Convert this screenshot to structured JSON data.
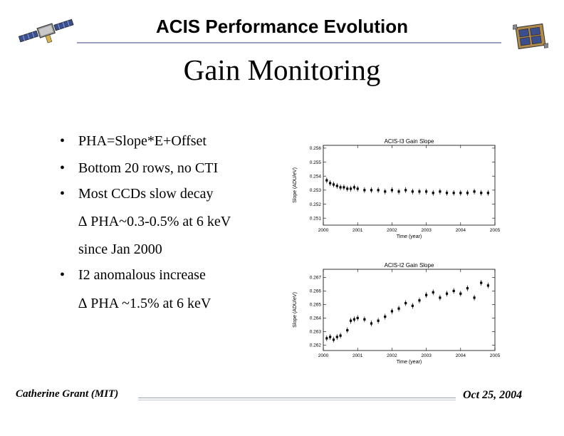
{
  "header": {
    "title": "ACIS Performance Evolution"
  },
  "slide": {
    "title": "Gain Monitoring"
  },
  "bullets": [
    {
      "marker": "•",
      "text": "PHA=Slope*E+Offset"
    },
    {
      "marker": "•",
      "text": "Bottom 20 rows, no CTI"
    },
    {
      "marker": "•",
      "text": "Most CCDs slow decay"
    },
    {
      "marker": "",
      "text": "∆ PHA~0.3-0.5% at 6 keV"
    },
    {
      "marker": "",
      "text": "since Jan 2000"
    },
    {
      "marker": "•",
      "text": "I2 anomalous increase"
    },
    {
      "marker": "",
      "text": "∆ PHA ~1.5% at 6 keV"
    }
  ],
  "footer": {
    "author": "Catherine Grant (MIT)",
    "date": "Oct 25, 2004"
  },
  "chart_data": [
    {
      "type": "scatter",
      "title": "ACIS-I3 Gain Slope",
      "xlabel": "Time (year)",
      "ylabel": "Slope (ADU/eV)",
      "xlim": [
        2000,
        2005
      ],
      "ylim": [
        0.2505,
        0.2562
      ],
      "xticks": [
        2000,
        2001,
        2002,
        2003,
        2004,
        2005
      ],
      "xtick_labels": [
        "2000",
        "2001",
        "2002",
        "2003",
        "2004",
        "2005"
      ],
      "yticks": [
        0.251,
        0.252,
        0.253,
        0.254,
        0.255,
        0.256
      ],
      "ytick_labels": [
        "0.251",
        "0.252",
        "0.253",
        "0.254",
        "0.255",
        "0.256"
      ],
      "points": [
        [
          2000.1,
          0.2537
        ],
        [
          2000.2,
          0.2535
        ],
        [
          2000.3,
          0.2534
        ],
        [
          2000.4,
          0.2533
        ],
        [
          2000.5,
          0.2532
        ],
        [
          2000.6,
          0.2532
        ],
        [
          2000.7,
          0.2531
        ],
        [
          2000.8,
          0.2531
        ],
        [
          2000.9,
          0.2532
        ],
        [
          2001.0,
          0.2531
        ],
        [
          2001.2,
          0.253
        ],
        [
          2001.4,
          0.253
        ],
        [
          2001.6,
          0.253
        ],
        [
          2001.8,
          0.2529
        ],
        [
          2002.0,
          0.253
        ],
        [
          2002.2,
          0.2529
        ],
        [
          2002.4,
          0.253
        ],
        [
          2002.6,
          0.2529
        ],
        [
          2002.8,
          0.2529
        ],
        [
          2003.0,
          0.2529
        ],
        [
          2003.2,
          0.2528
        ],
        [
          2003.4,
          0.2529
        ],
        [
          2003.6,
          0.2528
        ],
        [
          2003.8,
          0.2528
        ],
        [
          2004.0,
          0.2528
        ],
        [
          2004.2,
          0.2528
        ],
        [
          2004.4,
          0.2529
        ],
        [
          2004.6,
          0.2528
        ],
        [
          2004.8,
          0.2528
        ]
      ]
    },
    {
      "type": "scatter",
      "title": "ACIS-I2 Gain Slope",
      "xlabel": "Time (year)",
      "ylabel": "Slope (ADU/eV)",
      "xlim": [
        2000,
        2005
      ],
      "ylim": [
        0.2616,
        0.2676
      ],
      "xticks": [
        2000,
        2001,
        2002,
        2003,
        2004,
        2005
      ],
      "xtick_labels": [
        "2000",
        "2001",
        "2002",
        "2003",
        "2004",
        "2005"
      ],
      "yticks": [
        0.262,
        0.263,
        0.264,
        0.265,
        0.266,
        0.267
      ],
      "ytick_labels": [
        "0.262",
        "0.263",
        "0.264",
        "0.265",
        "0.266",
        "0.267"
      ],
      "points": [
        [
          2000.1,
          0.2625
        ],
        [
          2000.2,
          0.2626
        ],
        [
          2000.3,
          0.2624
        ],
        [
          2000.4,
          0.2626
        ],
        [
          2000.5,
          0.2627
        ],
        [
          2000.7,
          0.2631
        ],
        [
          2000.8,
          0.2638
        ],
        [
          2000.9,
          0.2639
        ],
        [
          2001.0,
          0.264
        ],
        [
          2001.2,
          0.2639
        ],
        [
          2001.4,
          0.2636
        ],
        [
          2001.6,
          0.2638
        ],
        [
          2001.8,
          0.2641
        ],
        [
          2002.0,
          0.2645
        ],
        [
          2002.2,
          0.2647
        ],
        [
          2002.4,
          0.2651
        ],
        [
          2002.6,
          0.2649
        ],
        [
          2002.8,
          0.2653
        ],
        [
          2003.0,
          0.2657
        ],
        [
          2003.2,
          0.2659
        ],
        [
          2003.4,
          0.2655
        ],
        [
          2003.6,
          0.2658
        ],
        [
          2003.8,
          0.266
        ],
        [
          2004.0,
          0.2658
        ],
        [
          2004.2,
          0.2662
        ],
        [
          2004.4,
          0.2655
        ],
        [
          2004.6,
          0.2666
        ],
        [
          2004.8,
          0.2664
        ]
      ]
    }
  ]
}
